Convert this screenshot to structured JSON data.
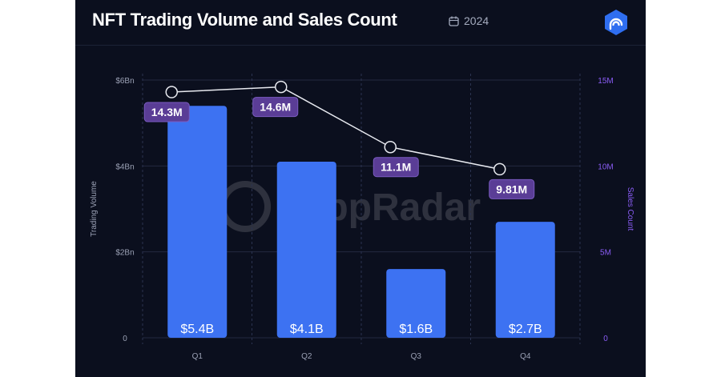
{
  "header": {
    "title": "NFT Trading Volume and Sales Count",
    "year": "2024",
    "calendar_icon": "calendar-icon",
    "logo_icon": "dappradar-logo-icon"
  },
  "watermark": "DappRadar",
  "colors": {
    "background": "#0b0f1e",
    "bar": "#3d72f2",
    "line": "#e8eaf0",
    "point_label_bg": "#5a3d96",
    "left_axis": "#9aa0b4",
    "right_axis": "#8a5cf5"
  },
  "chart_data": {
    "type": "bar",
    "categories": [
      "Q1",
      "Q2",
      "Q3",
      "Q4"
    ],
    "ylabel": "Trading Volume",
    "y2label": "Sales Count",
    "ylim": [
      0,
      6
    ],
    "y2lim": [
      0,
      15
    ],
    "yticks": [
      "0",
      "$2Bn",
      "$4Bn",
      "$6Bn"
    ],
    "y2ticks": [
      "0",
      "5M",
      "10M",
      "15M"
    ],
    "series": [
      {
        "name": "Trading Volume",
        "type": "bar",
        "axis": "left",
        "values": [
          5.4,
          4.1,
          1.6,
          2.7
        ],
        "labels": [
          "$5.4B",
          "$4.1B",
          "$1.6B",
          "$2.7B"
        ]
      },
      {
        "name": "Sales Count",
        "type": "line",
        "axis": "right",
        "values": [
          14.3,
          14.6,
          11.1,
          9.81
        ],
        "labels": [
          "14.3M",
          "14.6M",
          "11.1M",
          "9.81M"
        ]
      }
    ],
    "grid": true
  }
}
